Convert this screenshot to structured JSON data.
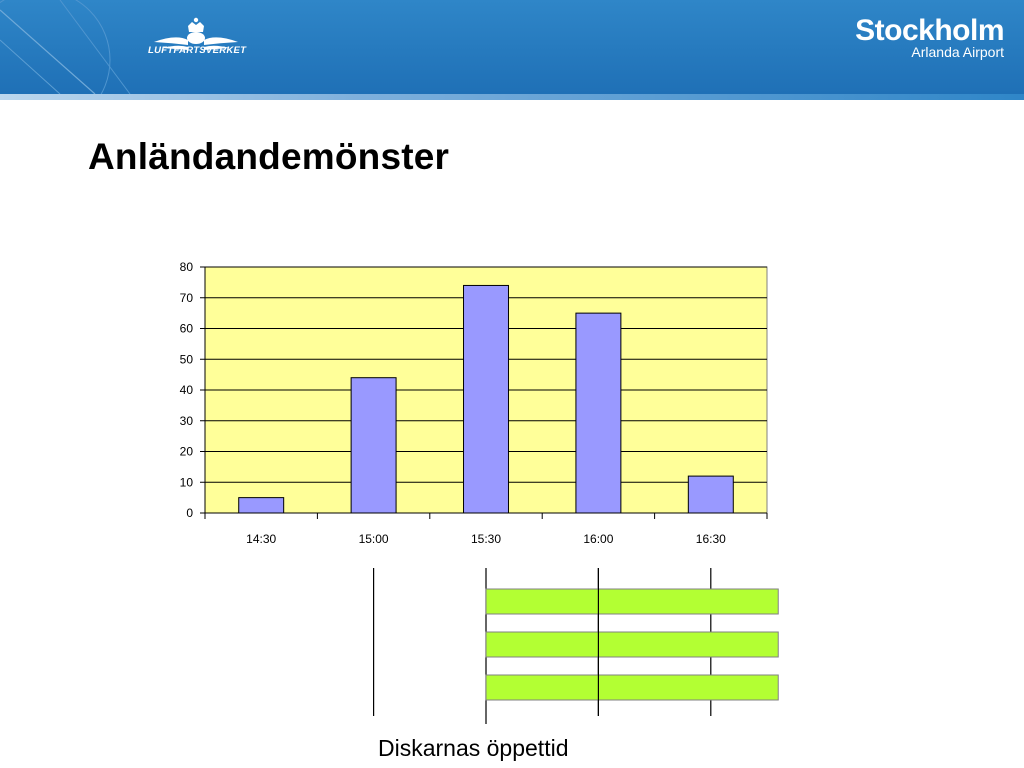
{
  "header": {
    "agency_name": "LUFTFARTSVERKET",
    "brand_title": "Stockholm",
    "brand_subtitle": "Arlanda Airport",
    "color": "#2a7fc3"
  },
  "slide": {
    "title": "Anländandemönster",
    "caption": "Diskarnas öppettid"
  },
  "chart_data": {
    "type": "bar",
    "categories": [
      "14:30",
      "15:00",
      "15:30",
      "16:00",
      "16:30"
    ],
    "values": [
      5,
      44,
      74,
      65,
      12
    ],
    "ylim": [
      0,
      80
    ],
    "yticks": [
      0,
      10,
      20,
      30,
      40,
      50,
      60,
      70,
      80
    ],
    "grid": true,
    "legend": "none",
    "plot_background": "#ffff99",
    "bar_color": "#9999ff"
  },
  "counter_schedule": {
    "bar_color": "#b3ff33",
    "rows": [
      {
        "start": "15:30",
        "end": "16:30"
      },
      {
        "start": "15:30",
        "end": "16:30"
      },
      {
        "start": "15:30",
        "end": "16:30"
      }
    ],
    "markers": [
      "15:00",
      "15:30",
      "16:00",
      "16:30"
    ]
  }
}
